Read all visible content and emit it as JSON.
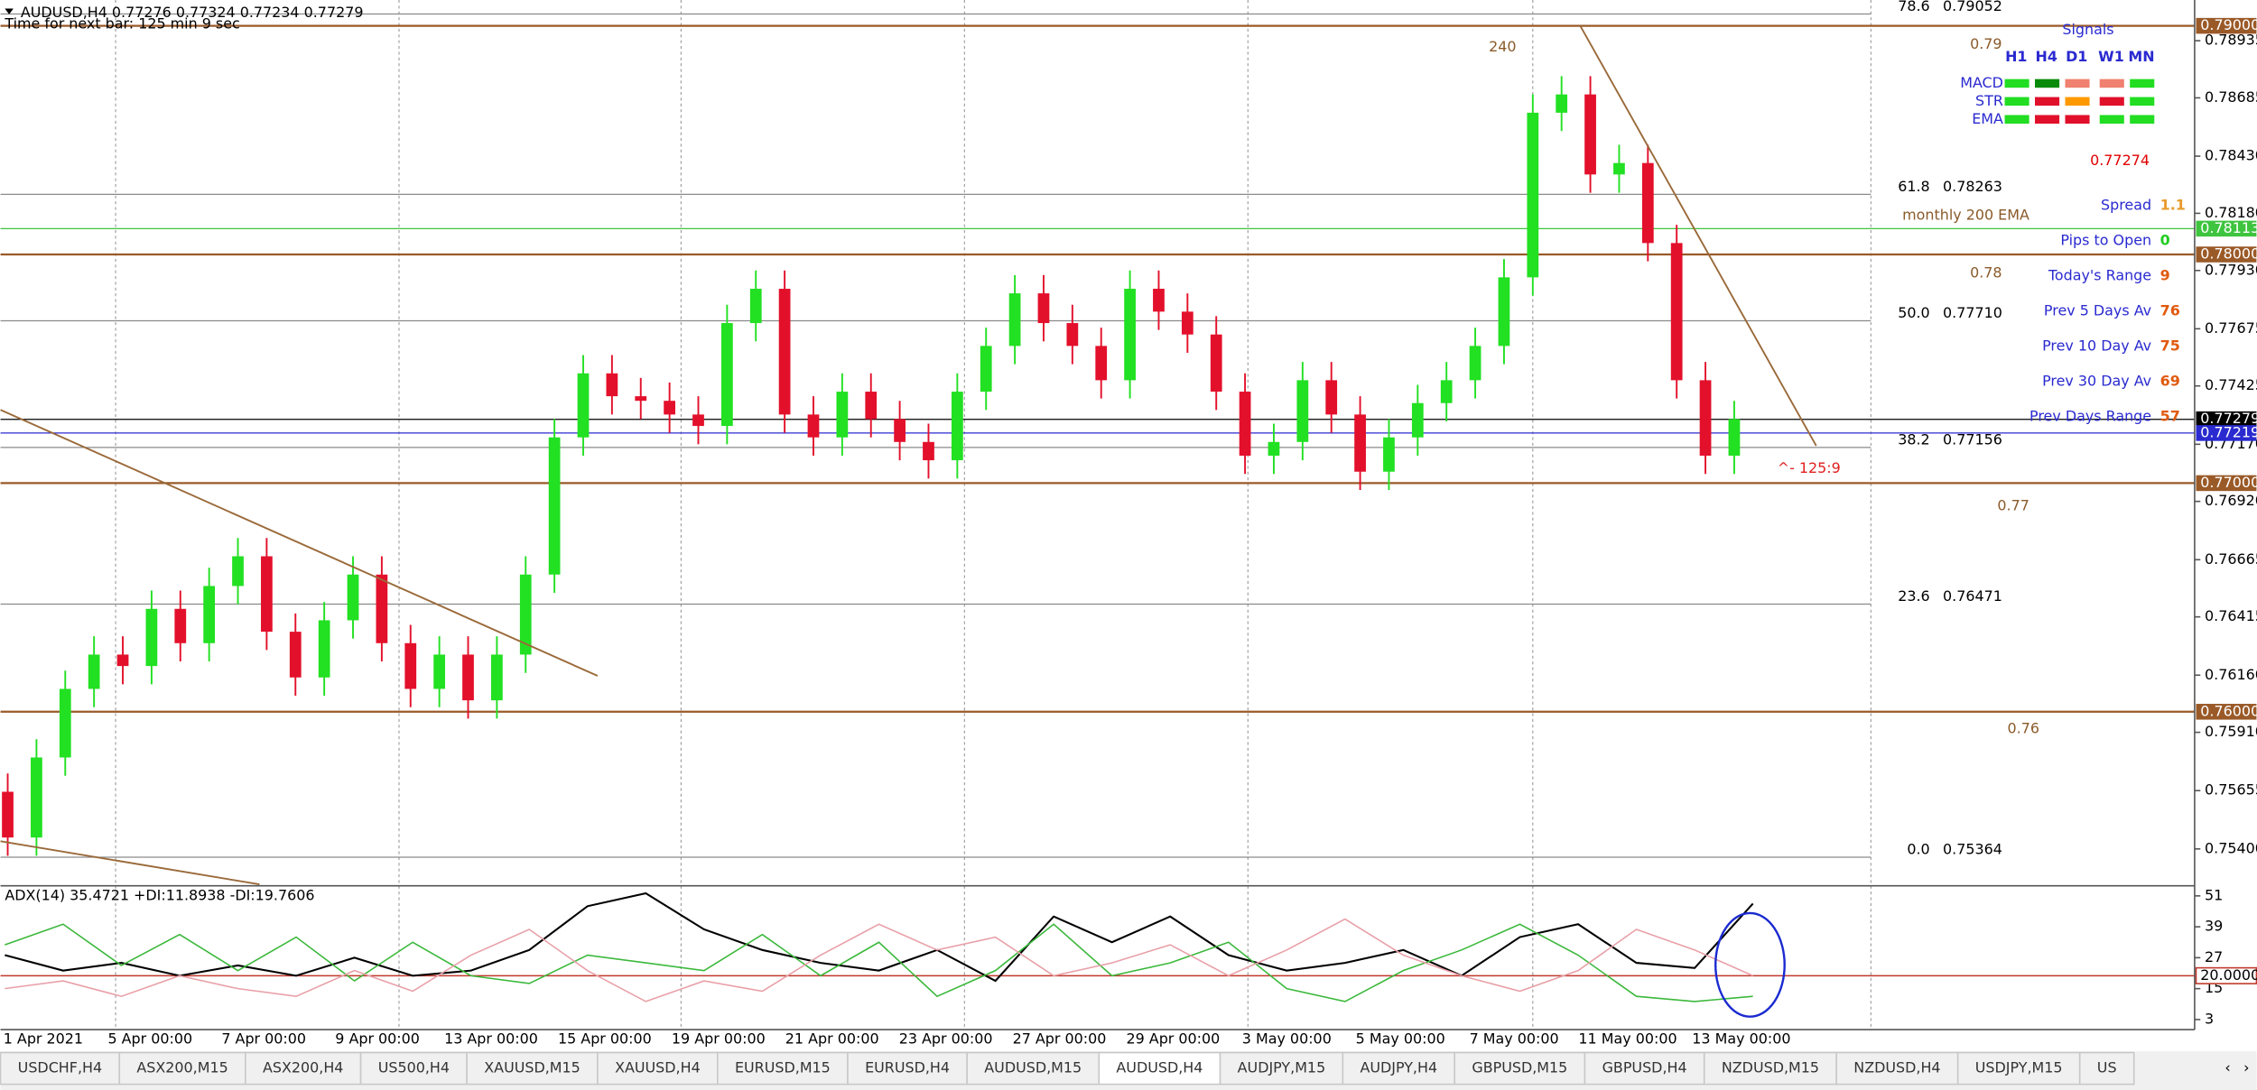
{
  "header": {
    "symbol": "AUDUSD,H4  0.77276 0.77324 0.77234 0.77279",
    "timer": "Time for next bar: 125 min 9 sec"
  },
  "chart_data": [
    {
      "type": "candlestick",
      "bull_color": "#22e022",
      "bear_color": "#e3102b",
      "ylim": [
        0.75245,
        0.79113
      ],
      "yticks": [
        {
          "value": 0.78935,
          "label": "0.78935"
        },
        {
          "value": 0.78685,
          "label": "0.78685"
        },
        {
          "value": 0.7843,
          "label": "0.78430"
        },
        {
          "value": 0.7818,
          "label": "0.78180"
        },
        {
          "value": 0.7793,
          "label": "0.77930"
        },
        {
          "value": 0.77675,
          "label": "0.77675"
        },
        {
          "value": 0.77425,
          "label": "0.77425"
        },
        {
          "value": 0.7717,
          "label": "0.77170"
        },
        {
          "value": 0.7692,
          "label": "0.76920"
        },
        {
          "value": 0.76665,
          "label": "0.76665"
        },
        {
          "value": 0.76415,
          "label": "0.76415"
        },
        {
          "value": 0.7616,
          "label": "0.76160"
        },
        {
          "value": 0.7591,
          "label": "0.75910"
        },
        {
          "value": 0.75655,
          "label": "0.75655"
        },
        {
          "value": 0.754,
          "label": "0.75400"
        }
      ],
      "categories": [
        "1 Apr 2021",
        "5 Apr 00:00",
        "7 Apr 00:00",
        "9 Apr 00:00",
        "13 Apr 00:00",
        "15 Apr 00:00",
        "19 Apr 00:00",
        "21 Apr 00:00",
        "23 Apr 00:00",
        "27 Apr 00:00",
        "29 Apr 00:00",
        "3 May 00:00",
        "5 May 00:00",
        "7 May 00:00",
        "11 May 00:00",
        "13 May 00:00"
      ],
      "ohlc": [
        [
          0.7565,
          0.7573,
          0.7537,
          0.7545
        ],
        [
          0.7545,
          0.7588,
          0.7537,
          0.758
        ],
        [
          0.758,
          0.7618,
          0.7572,
          0.761
        ],
        [
          0.761,
          0.7633,
          0.7602,
          0.7625
        ],
        [
          0.7625,
          0.7633,
          0.7612,
          0.762
        ],
        [
          0.762,
          0.7653,
          0.7612,
          0.7645
        ],
        [
          0.7645,
          0.7653,
          0.7622,
          0.763
        ],
        [
          0.763,
          0.7663,
          0.7622,
          0.7655
        ],
        [
          0.7655,
          0.7676,
          0.7647,
          0.7668
        ],
        [
          0.7668,
          0.7676,
          0.7627,
          0.7635
        ],
        [
          0.7635,
          0.7643,
          0.7607,
          0.7615
        ],
        [
          0.7615,
          0.7648,
          0.7607,
          0.764
        ],
        [
          0.764,
          0.7668,
          0.7632,
          0.766
        ],
        [
          0.766,
          0.7668,
          0.7622,
          0.763
        ],
        [
          0.763,
          0.7638,
          0.7602,
          0.761
        ],
        [
          0.761,
          0.7633,
          0.7602,
          0.7625
        ],
        [
          0.7625,
          0.7633,
          0.7597,
          0.7605
        ],
        [
          0.7605,
          0.7633,
          0.7597,
          0.7625
        ],
        [
          0.7625,
          0.7668,
          0.7617,
          0.766
        ],
        [
          0.766,
          0.7728,
          0.7652,
          0.772
        ],
        [
          0.772,
          0.7756,
          0.7712,
          0.7748
        ],
        [
          0.7748,
          0.7756,
          0.773,
          0.7738
        ],
        [
          0.7738,
          0.7746,
          0.7728,
          0.7736
        ],
        [
          0.7736,
          0.7744,
          0.7722,
          0.773
        ],
        [
          0.773,
          0.7738,
          0.7717,
          0.7725
        ],
        [
          0.7725,
          0.7778,
          0.7717,
          0.777
        ],
        [
          0.777,
          0.7793,
          0.7762,
          0.7785
        ],
        [
          0.7785,
          0.7793,
          0.7722,
          0.773
        ],
        [
          0.773,
          0.7738,
          0.7712,
          0.772
        ],
        [
          0.772,
          0.7748,
          0.7712,
          0.774
        ],
        [
          0.774,
          0.7748,
          0.772,
          0.7728
        ],
        [
          0.7728,
          0.7736,
          0.771,
          0.7718
        ],
        [
          0.7718,
          0.7726,
          0.7702,
          0.771
        ],
        [
          0.771,
          0.7748,
          0.7702,
          0.774
        ],
        [
          0.774,
          0.7768,
          0.7732,
          0.776
        ],
        [
          0.776,
          0.7791,
          0.7752,
          0.7783
        ],
        [
          0.7783,
          0.7791,
          0.7762,
          0.777
        ],
        [
          0.777,
          0.7778,
          0.7752,
          0.776
        ],
        [
          0.776,
          0.7768,
          0.7737,
          0.7745
        ],
        [
          0.7745,
          0.7793,
          0.7737,
          0.7785
        ],
        [
          0.7785,
          0.7793,
          0.7767,
          0.7775
        ],
        [
          0.7775,
          0.7783,
          0.7757,
          0.7765
        ],
        [
          0.7765,
          0.7773,
          0.7732,
          0.774
        ],
        [
          0.774,
          0.7748,
          0.7704,
          0.7712
        ],
        [
          0.7712,
          0.7726,
          0.7704,
          0.7718
        ],
        [
          0.7718,
          0.7753,
          0.771,
          0.7745
        ],
        [
          0.7745,
          0.7753,
          0.7722,
          0.773
        ],
        [
          0.773,
          0.7738,
          0.7697,
          0.7705
        ],
        [
          0.7705,
          0.7728,
          0.7697,
          0.772
        ],
        [
          0.772,
          0.7743,
          0.7712,
          0.7735
        ],
        [
          0.7735,
          0.7753,
          0.7727,
          0.7745
        ],
        [
          0.7745,
          0.7768,
          0.7737,
          0.776
        ],
        [
          0.776,
          0.7798,
          0.7752,
          0.779
        ],
        [
          0.779,
          0.787,
          0.7782,
          0.7862
        ],
        [
          0.7862,
          0.7878,
          0.7854,
          0.787
        ],
        [
          0.787,
          0.7878,
          0.7827,
          0.7835
        ],
        [
          0.7835,
          0.7848,
          0.7827,
          0.784
        ],
        [
          0.784,
          0.7848,
          0.7797,
          0.7805
        ],
        [
          0.7805,
          0.7813,
          0.7737,
          0.7745
        ],
        [
          0.7745,
          0.7753,
          0.7704,
          0.7712
        ],
        [
          0.7712,
          0.7736,
          0.7704,
          0.7728
        ]
      ],
      "levels": [
        {
          "value": 0.79,
          "label": "0.79000",
          "color": "#9a5a28"
        },
        {
          "value": 0.78113,
          "label": "0.78113",
          "color": "#3ec43e"
        },
        {
          "value": 0.78,
          "label": "0.78000",
          "color": "#9a5a28"
        },
        {
          "value": 0.77279,
          "label": "0.77279",
          "color": "#000000"
        },
        {
          "value": 0.77219,
          "label": "0.77219",
          "color": "#2a2ad0"
        },
        {
          "value": 0.77,
          "label": "0.77000",
          "color": "#9a5a28"
        },
        {
          "value": 0.76,
          "label": "0.76000",
          "color": "#9a5a28"
        }
      ],
      "fibonacci": [
        {
          "ratio": "78.6",
          "value": 0.79052,
          "label": "0.79052"
        },
        {
          "ratio": "61.8",
          "value": 0.78263,
          "label": "0.78263"
        },
        {
          "ratio": "50.0",
          "value": 0.7771,
          "label": "0.77710"
        },
        {
          "ratio": "38.2",
          "value": 0.77156,
          "label": "0.77156"
        },
        {
          "ratio": "23.6",
          "value": 0.76471,
          "label": "0.76471"
        },
        {
          "ratio": "0.0",
          "value": 0.75364,
          "label": "0.75364"
        }
      ]
    },
    {
      "type": "line",
      "title": "ADX(14) 35.4721 +DI:11.8938 -DI:19.7606",
      "ylim": [
        -0.35,
        54.35
      ],
      "yticks": [
        3,
        15,
        27,
        39,
        51
      ],
      "level": {
        "value": 20,
        "label": "20.0000",
        "color": "#c0392b"
      },
      "series": [
        {
          "color": "#000000",
          "values": [
            28,
            22,
            25,
            20,
            24,
            20,
            27,
            20,
            22,
            30,
            47,
            52,
            38,
            30,
            25,
            22,
            30,
            18,
            43,
            33,
            43,
            28,
            22,
            25,
            30,
            20,
            35,
            40,
            25,
            23,
            48
          ]
        },
        {
          "color": "#3cb83c",
          "values": [
            32,
            40,
            24,
            36,
            22,
            35,
            18,
            33,
            20,
            17,
            28,
            25,
            22,
            36,
            20,
            33,
            12,
            22,
            40,
            20,
            25,
            33,
            15,
            10,
            22,
            30,
            40,
            28,
            12,
            10,
            12
          ]
        },
        {
          "color": "#e8a0a8",
          "values": [
            15,
            18,
            12,
            20,
            15,
            12,
            22,
            14,
            28,
            38,
            22,
            10,
            18,
            14,
            28,
            40,
            30,
            35,
            20,
            25,
            32,
            20,
            30,
            42,
            28,
            20,
            14,
            22,
            38,
            30,
            20
          ]
        }
      ]
    }
  ],
  "annotations": {
    "round_levels": [
      "0.79",
      "0.78",
      "0.77",
      "0.76"
    ],
    "count": "240",
    "ema_note": "monthly 200 EMA",
    "timer_note": "^- 125:9"
  },
  "signals": {
    "title": "Signals",
    "columns": [
      "H1",
      "H4",
      "D1",
      "W1",
      "MN"
    ],
    "rows": [
      {
        "label": "MACD",
        "colors": [
          "#22dd22",
          "#0a8a0a",
          "#f08070",
          "#f08070",
          "#22dd22"
        ]
      },
      {
        "label": "STR",
        "colors": [
          "#22dd22",
          "#e0102a",
          "#ff9900",
          "#e0102a",
          "#22dd22"
        ]
      },
      {
        "label": "EMA",
        "colors": [
          "#22dd22",
          "#e0102a",
          "#e0102a",
          "#22dd22",
          "#22dd22"
        ]
      }
    ]
  },
  "stats": {
    "price": 0.77274,
    "rows": [
      {
        "label": "Spread",
        "value": 1.1,
        "color": "#e89a2c"
      },
      {
        "label": "Pips to Open",
        "value": 0,
        "color": "#22cc22"
      },
      {
        "label": "Today's Range",
        "value": 9,
        "color": "#e05a10"
      },
      {
        "label": "Prev 5 Days Av",
        "value": 76,
        "color": "#e05a10"
      },
      {
        "label": "Prev 10 Day Av",
        "value": 75,
        "color": "#e05a10"
      },
      {
        "label": "Prev 30 Day Av",
        "value": 69,
        "color": "#e05a10"
      },
      {
        "label": "Prev Days Range",
        "value": 57,
        "color": "#e05a10"
      }
    ]
  },
  "tabs": [
    "USDCHF,H4",
    "ASX200,M15",
    "ASX200,H4",
    "US500,H4",
    "XAUUSD,M15",
    "XAUUSD,H4",
    "EURUSD,M15",
    "EURUSD,H4",
    "AUDUSD,M15",
    "AUDUSD,H4",
    "AUDJPY,M15",
    "AUDJPY,H4",
    "GBPUSD,M15",
    "GBPUSD,H4",
    "NZDUSD,M15",
    "NZDUSD,H4",
    "USDJPY,M15",
    "US"
  ],
  "active_tab": 9
}
